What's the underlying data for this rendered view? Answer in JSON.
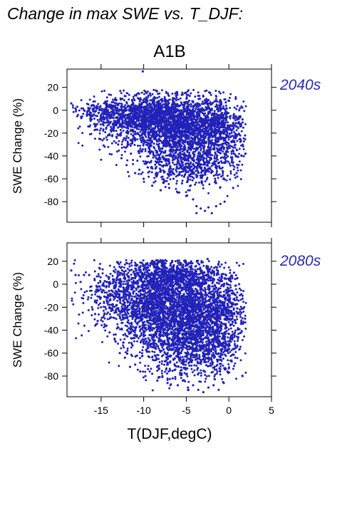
{
  "figure": {
    "title": "Change in max SWE vs. T_DJF:",
    "scenario": "A1B",
    "xlabel": "T(DJF,degC)",
    "point_color": "#2222b8",
    "label_color": "#2a2ab4"
  },
  "chart_data": [
    {
      "type": "scatter",
      "panel_label": "2040s",
      "xlabel": "T(DJF,degC)",
      "ylabel": "SWE Change (%)",
      "xlim": [
        -19,
        5
      ],
      "ylim": [
        -98,
        36
      ],
      "xticks": [
        -15,
        -10,
        -5,
        0,
        5
      ],
      "yticks": [
        20,
        0,
        -20,
        -40,
        -60,
        -80
      ],
      "x_tick_labels_shown": false,
      "series": [
        {
          "color": "#2222b8",
          "points": [
            [
              -18.5,
              6
            ],
            [
              -17.8,
              3
            ],
            [
              -17,
              0
            ],
            [
              -16.5,
              2
            ],
            [
              -16.1,
              -8
            ],
            [
              -15.6,
              -17
            ],
            [
              -15.2,
              -25
            ],
            [
              -14.8,
              -12
            ],
            [
              -14.2,
              -22
            ],
            [
              -13.5,
              -18
            ],
            [
              -13,
              -30
            ],
            [
              -12.6,
              -42
            ],
            [
              -12,
              -48
            ],
            [
              -11.5,
              -38
            ],
            [
              -11,
              -55
            ],
            [
              -10.5,
              -52
            ],
            [
              -10,
              -60
            ],
            [
              -9.5,
              -50
            ],
            [
              -9,
              -66
            ],
            [
              -8.5,
              -58
            ],
            [
              -8,
              -70
            ],
            [
              -7.5,
              -62
            ],
            [
              -7,
              -68
            ],
            [
              -6.5,
              -60
            ],
            [
              -6,
              -72
            ],
            [
              -5.5,
              -64
            ],
            [
              -5,
              -75
            ],
            [
              -4.6,
              -70
            ],
            [
              -4.2,
              -78
            ],
            [
              -3.8,
              -84
            ],
            [
              -3.3,
              -86
            ],
            [
              -2.8,
              -88
            ],
            [
              -2.4,
              -85
            ],
            [
              -2,
              -90
            ],
            [
              -1.5,
              -84
            ],
            [
              -1,
              -82
            ],
            [
              -0.5,
              -80
            ],
            [
              -3.8,
              -90
            ],
            [
              -10.1,
              34
            ],
            [
              -3,
              12
            ],
            [
              0.8,
              10
            ],
            [
              1.2,
              0
            ],
            [
              1.6,
              -8
            ],
            [
              1.9,
              -22
            ],
            [
              1.5,
              -40
            ],
            [
              0.9,
              -55
            ],
            [
              0.5,
              -68
            ],
            [
              -12.5,
              10
            ],
            [
              -13.2,
              6
            ],
            [
              -14,
              4
            ]
          ],
          "cloud_regions": [
            {
              "x": -7.0,
              "y": -10,
              "sx": 3.6,
              "sy": 12,
              "n": 1900
            },
            {
              "x": -5.0,
              "y": -30,
              "sx": 3.2,
              "sy": 14,
              "n": 900
            },
            {
              "x": -4.0,
              "y": -50,
              "sx": 2.6,
              "sy": 9,
              "n": 350
            },
            {
              "x": -11.5,
              "y": -3,
              "sx": 2.8,
              "sy": 7,
              "n": 500
            },
            {
              "x": -15.0,
              "y": 0,
              "sx": 1.5,
              "sy": 4,
              "n": 80
            },
            {
              "x": -1.0,
              "y": -15,
              "sx": 1.3,
              "sy": 12,
              "n": 350
            }
          ],
          "ymax_cap": 18
        }
      ]
    },
    {
      "type": "scatter",
      "panel_label": "2080s",
      "xlabel": "T(DJF,degC)",
      "ylabel": "SWE Change (%)",
      "xlim": [
        -19,
        5
      ],
      "ylim": [
        -98,
        36
      ],
      "xticks": [
        -15,
        -10,
        -5,
        0,
        5
      ],
      "yticks": [
        20,
        0,
        -20,
        -40,
        -60,
        -80
      ],
      "x_tick_labels_shown": true,
      "series": [
        {
          "color": "#2222b8",
          "points": [
            [
              -18.5,
              12
            ],
            [
              -18,
              8
            ],
            [
              -17.4,
              2
            ],
            [
              -17,
              8
            ],
            [
              -16.4,
              8
            ],
            [
              -16,
              -22
            ],
            [
              -15.7,
              -26
            ],
            [
              -15.4,
              -32
            ],
            [
              -15,
              -20
            ],
            [
              -14.5,
              -36
            ],
            [
              -14,
              -42
            ],
            [
              -13.3,
              -50
            ],
            [
              -12.8,
              -60
            ],
            [
              -12.2,
              -64
            ],
            [
              -11.6,
              -72
            ],
            [
              -11,
              -70
            ],
            [
              -10.4,
              -76
            ],
            [
              -9.8,
              -80
            ],
            [
              -9,
              -78
            ],
            [
              -8.4,
              -84
            ],
            [
              -7.8,
              -80
            ],
            [
              -7.2,
              -86
            ],
            [
              -6.6,
              -82
            ],
            [
              -6,
              -88
            ],
            [
              -5.4,
              -84
            ],
            [
              -4.8,
              -90
            ],
            [
              -4.2,
              -88
            ],
            [
              -3.6,
              -92
            ],
            [
              -3,
              -94
            ],
            [
              -2.4,
              -90
            ],
            [
              -1.8,
              -88
            ],
            [
              -1.2,
              -92
            ],
            [
              -0.6,
              -86
            ],
            [
              1.6,
              -80
            ],
            [
              1.8,
              -20
            ],
            [
              1.9,
              -30
            ],
            [
              1.6,
              -10
            ],
            [
              1.2,
              0
            ],
            [
              0.6,
              10
            ],
            [
              -2.5,
              22
            ],
            [
              -12.8,
              8
            ],
            [
              -13.6,
              4
            ],
            [
              -14.3,
              2
            ]
          ],
          "cloud_regions": [
            {
              "x": -6.0,
              "y": -20,
              "sx": 3.6,
              "sy": 18,
              "n": 2400
            },
            {
              "x": -4.5,
              "y": -55,
              "sx": 2.8,
              "sy": 14,
              "n": 900
            },
            {
              "x": -7.0,
              "y": 8,
              "sx": 3.0,
              "sy": 6,
              "n": 600
            },
            {
              "x": -11.0,
              "y": -15,
              "sx": 2.6,
              "sy": 15,
              "n": 500
            },
            {
              "x": -14.0,
              "y": -5,
              "sx": 1.6,
              "sy": 8,
              "n": 120
            },
            {
              "x": -1.0,
              "y": -30,
              "sx": 1.4,
              "sy": 20,
              "n": 450
            }
          ],
          "ymax_cap": 21
        }
      ]
    }
  ]
}
